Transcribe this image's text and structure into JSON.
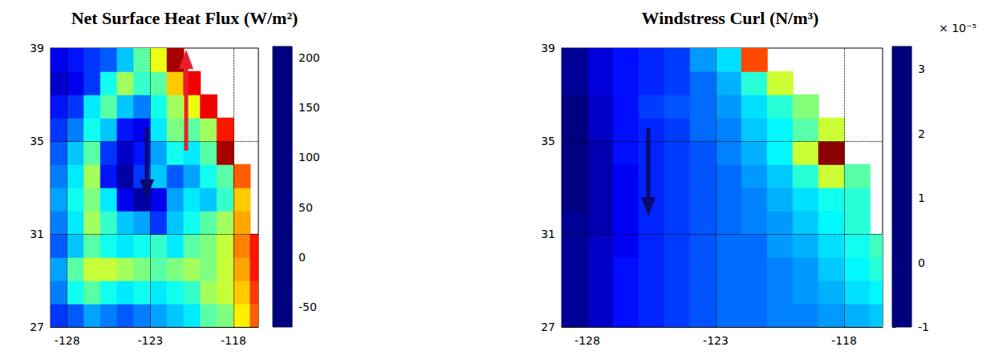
{
  "chart_data": [
    {
      "type": "heatmap",
      "title": "Net Surface Heat Flux (W/m²)",
      "x": [
        -128.5,
        -127.5,
        -126.5,
        -125.5,
        -124.5,
        -123.5,
        -122.5,
        -121.5,
        -120.5,
        -119.5,
        -118.5,
        -117.5,
        -116.5
      ],
      "y": [
        27.5,
        28.5,
        29.5,
        30.5,
        31.5,
        32.5,
        33.5,
        34.5,
        35.5,
        36.5,
        37.5,
        38.5
      ],
      "values": [
        [
          -20,
          -10,
          10,
          0,
          -10,
          0,
          10,
          20,
          30,
          60,
          70,
          110,
          150
        ],
        [
          0,
          40,
          60,
          40,
          30,
          40,
          30,
          40,
          50,
          80,
          90,
          120,
          160
        ],
        [
          10,
          60,
          90,
          90,
          80,
          70,
          60,
          70,
          80,
          70,
          90,
          130,
          170
        ],
        [
          -10,
          20,
          60,
          40,
          30,
          40,
          50,
          30,
          60,
          70,
          90,
          140,
          170
        ],
        [
          0,
          30,
          80,
          50,
          20,
          10,
          -20,
          20,
          40,
          60,
          80,
          130,
          null
        ],
        [
          10,
          40,
          70,
          30,
          -40,
          -60,
          -40,
          10,
          30,
          20,
          50,
          120,
          null
        ],
        [
          0,
          30,
          80,
          -30,
          -60,
          -20,
          20,
          -10,
          10,
          40,
          60,
          150,
          null
        ],
        [
          -10,
          20,
          60,
          -20,
          -50,
          -30,
          10,
          40,
          30,
          60,
          200,
          null,
          null
        ],
        [
          -20,
          0,
          40,
          20,
          -30,
          -40,
          30,
          70,
          60,
          80,
          170,
          null,
          null
        ],
        [
          -30,
          -20,
          30,
          60,
          20,
          0,
          40,
          80,
          100,
          180,
          null,
          null,
          null
        ],
        [
          -50,
          -40,
          -20,
          40,
          80,
          50,
          60,
          120,
          180,
          null,
          null,
          null,
          null
        ],
        [
          -40,
          -30,
          -20,
          -10,
          20,
          60,
          100,
          200,
          null,
          null,
          null,
          null,
          null
        ]
      ],
      "xlim": [
        -129,
        -116.5
      ],
      "ylim": [
        27,
        39
      ],
      "xticks": [
        -128,
        -123,
        -118
      ],
      "yticks": [
        27,
        31,
        35,
        39
      ],
      "grid": true,
      "colorbar": {
        "range": [
          -70,
          211
        ],
        "ticks": [
          -50,
          0,
          50,
          100,
          150,
          200
        ]
      }
    },
    {
      "type": "heatmap",
      "title": "Windstress Curl (N/m³)",
      "x": [
        -128.5,
        -127.5,
        -126.5,
        -125.5,
        -124.5,
        -123.5,
        -122.5,
        -121.5,
        -120.5,
        -119.5,
        -118.5,
        -117.5,
        -116.5
      ],
      "y": [
        27.5,
        28.5,
        29.5,
        30.5,
        31.5,
        32.5,
        33.5,
        34.5,
        35.5,
        36.5,
        37.5,
        38.5
      ],
      "values": [
        [
          -0.9,
          -0.7,
          -0.4,
          -0.3,
          -0.2,
          -0.1,
          0,
          0,
          0.1,
          0.1,
          0.2,
          0.3,
          0.4
        ],
        [
          -0.9,
          -0.7,
          -0.4,
          -0.3,
          -0.2,
          -0.1,
          0,
          0,
          0.1,
          0.2,
          0.3,
          0.5,
          0.6
        ],
        [
          -0.9,
          -0.7,
          -0.4,
          -0.3,
          -0.2,
          -0.1,
          0,
          0,
          0.1,
          0.2,
          0.4,
          0.6,
          0.8
        ],
        [
          -0.9,
          -0.7,
          -0.5,
          -0.3,
          -0.2,
          -0.1,
          0,
          0,
          0.2,
          0.3,
          0.5,
          0.7,
          0.9
        ],
        [
          -0.9,
          -0.8,
          -0.5,
          -0.3,
          -0.2,
          -0.1,
          0,
          0.1,
          0.2,
          0.4,
          0.6,
          0.8,
          null
        ],
        [
          -1,
          -0.8,
          -0.5,
          -0.3,
          -0.2,
          -0.1,
          0,
          0.1,
          0.3,
          0.5,
          0.7,
          0.8,
          null
        ],
        [
          -1,
          -0.8,
          -0.5,
          -0.3,
          -0.2,
          -0.1,
          0,
          0.2,
          0.4,
          0.8,
          1.5,
          1.0,
          null
        ],
        [
          -1,
          -0.8,
          -0.4,
          -0.3,
          -0.2,
          -0.1,
          0.1,
          0.3,
          0.6,
          1.5,
          3.3,
          null,
          null
        ],
        [
          -1,
          -0.7,
          -0.4,
          -0.3,
          -0.2,
          0,
          0.1,
          0.4,
          0.6,
          1.0,
          1.5,
          null,
          null
        ],
        [
          -1,
          -0.7,
          -0.4,
          -0.2,
          -0.1,
          0,
          0.2,
          0.5,
          0.8,
          1.2,
          null,
          null,
          null
        ],
        [
          -0.9,
          -0.6,
          -0.4,
          -0.3,
          -0.2,
          0,
          0.3,
          0.8,
          1.5,
          null,
          null,
          null,
          null
        ],
        [
          -0.9,
          -0.6,
          -0.4,
          -0.3,
          -0.2,
          0.2,
          0.5,
          2.5,
          null,
          null,
          null,
          null,
          null
        ]
      ],
      "xlim": [
        -129,
        -116.5
      ],
      "ylim": [
        27,
        39
      ],
      "xticks": [
        -128,
        -123,
        -118
      ],
      "yticks": [
        27,
        31,
        35,
        39
      ],
      "grid": true,
      "colorbar": {
        "range": [
          -1,
          3.35
        ],
        "ticks": [
          -1,
          0,
          1,
          2,
          3
        ],
        "label": "× 10⁻⁵"
      }
    }
  ]
}
